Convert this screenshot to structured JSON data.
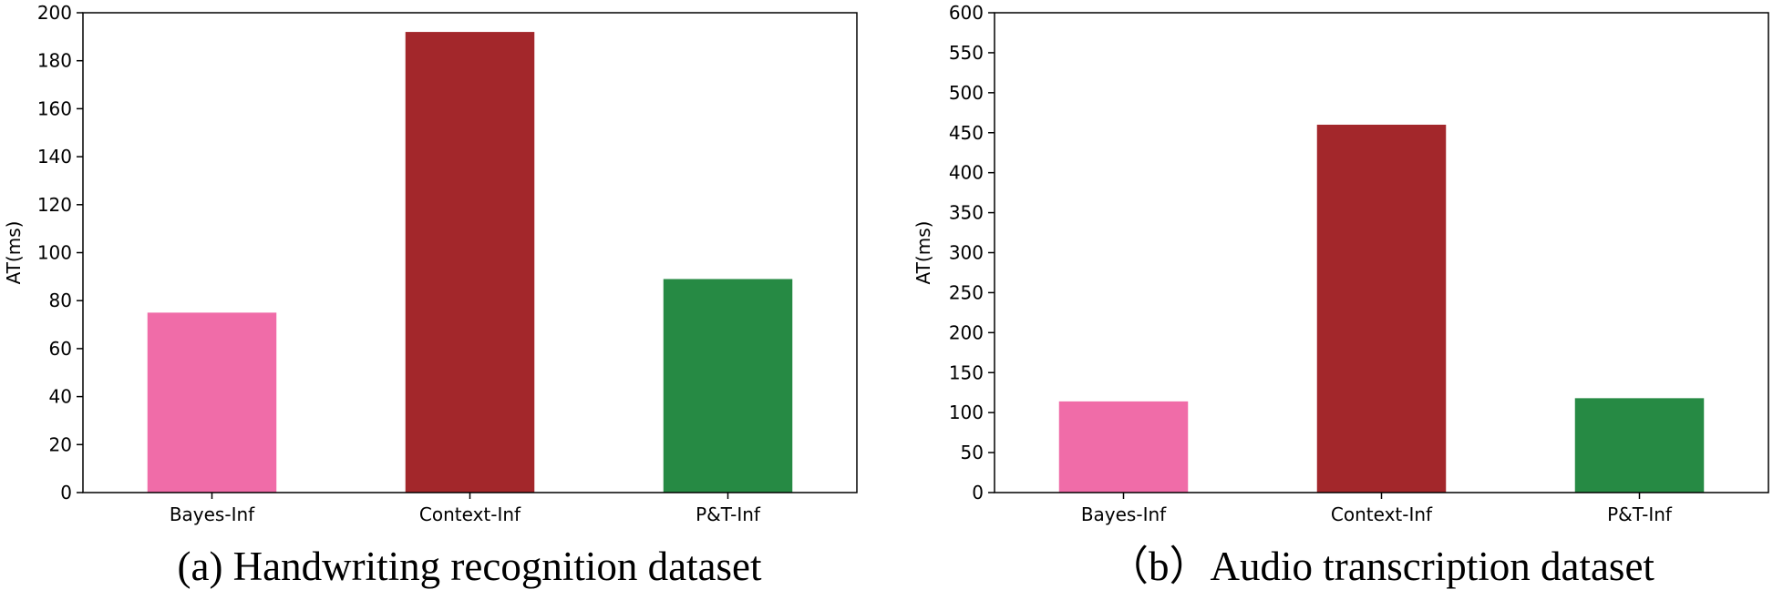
{
  "chart_data": [
    {
      "type": "bar",
      "title": "",
      "caption": "(a)  Handwriting recognition dataset",
      "xlabel": "",
      "ylabel": "AT(ms)",
      "categories": [
        "Bayes-Inf",
        "Context-Inf",
        "P&T-Inf"
      ],
      "values": [
        75,
        192,
        89
      ],
      "colors": [
        "#f06ca8",
        "#a3272b",
        "#268a44"
      ],
      "ylim": [
        0,
        200
      ],
      "yticks": [
        0,
        20,
        40,
        60,
        80,
        100,
        120,
        140,
        160,
        180,
        200
      ],
      "grid": false
    },
    {
      "type": "bar",
      "title": "",
      "caption": "（b）Audio transcription dataset",
      "xlabel": "",
      "ylabel": "AT(ms)",
      "categories": [
        "Bayes-Inf",
        "Context-Inf",
        "P&T-Inf"
      ],
      "values": [
        114,
        460,
        118
      ],
      "colors": [
        "#f06ca8",
        "#a3272b",
        "#268a44"
      ],
      "ylim": [
        0,
        600
      ],
      "yticks": [
        0,
        50,
        100,
        150,
        200,
        250,
        300,
        350,
        400,
        450,
        500,
        550,
        600
      ],
      "grid": false
    }
  ]
}
